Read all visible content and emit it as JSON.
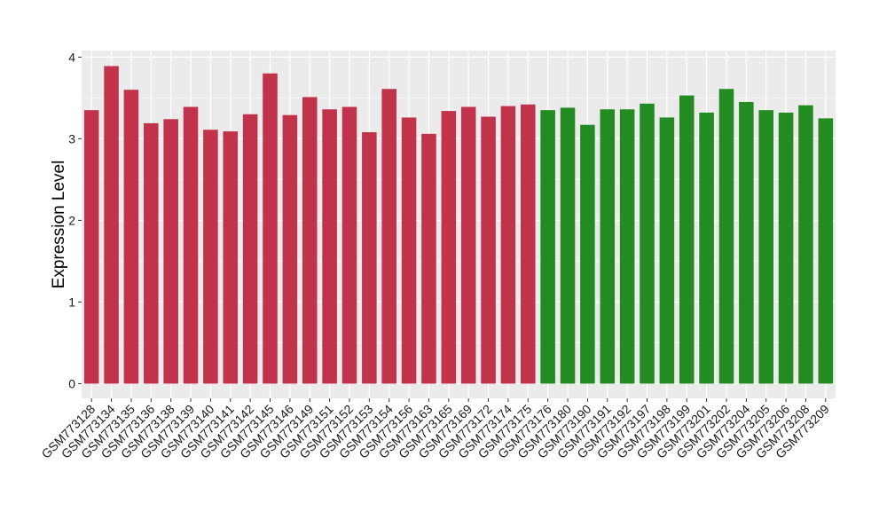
{
  "chart_data": {
    "type": "bar",
    "ylabel": "Expression Level",
    "xlabel": "",
    "ylim": [
      -0.18,
      4.08
    ],
    "yticks": [
      0,
      1,
      2,
      3,
      4
    ],
    "grid": true,
    "legend": "none",
    "panel_background": "#ebebeb",
    "grid_color": "#ffffff",
    "categories": [
      "GSM773128",
      "GSM773134",
      "GSM773135",
      "GSM773136",
      "GSM773138",
      "GSM773139",
      "GSM773140",
      "GSM773141",
      "GSM773142",
      "GSM773145",
      "GSM773146",
      "GSM773149",
      "GSM773151",
      "GSM773152",
      "GSM773153",
      "GSM773154",
      "GSM773156",
      "GSM773163",
      "GSM773165",
      "GSM773169",
      "GSM773172",
      "GSM773174",
      "GSM773175",
      "GSM773176",
      "GSM773180",
      "GSM773190",
      "GSM773191",
      "GSM773192",
      "GSM773197",
      "GSM773198",
      "GSM773199",
      "GSM773201",
      "GSM773202",
      "GSM773204",
      "GSM773205",
      "GSM773206",
      "GSM773208",
      "GSM773209"
    ],
    "values": [
      3.35,
      3.89,
      3.6,
      3.19,
      3.24,
      3.39,
      3.11,
      3.09,
      3.3,
      3.8,
      3.29,
      3.51,
      3.36,
      3.39,
      3.08,
      3.61,
      3.26,
      3.06,
      3.34,
      3.39,
      3.27,
      3.4,
      3.42,
      3.35,
      3.38,
      3.17,
      3.36,
      3.36,
      3.43,
      3.26,
      3.53,
      3.32,
      3.61,
      3.45,
      3.35,
      3.32,
      3.41,
      3.25
    ],
    "colors": [
      "#c1334a",
      "#c1334a",
      "#c1334a",
      "#c1334a",
      "#c1334a",
      "#c1334a",
      "#c1334a",
      "#c1334a",
      "#c1334a",
      "#c1334a",
      "#c1334a",
      "#c1334a",
      "#c1334a",
      "#c1334a",
      "#c1334a",
      "#c1334a",
      "#c1334a",
      "#c1334a",
      "#c1334a",
      "#c1334a",
      "#c1334a",
      "#c1334a",
      "#c1334a",
      "#228b22",
      "#228b22",
      "#228b22",
      "#228b22",
      "#228b22",
      "#228b22",
      "#228b22",
      "#228b22",
      "#228b22",
      "#228b22",
      "#228b22",
      "#228b22",
      "#228b22",
      "#228b22",
      "#228b22"
    ]
  }
}
